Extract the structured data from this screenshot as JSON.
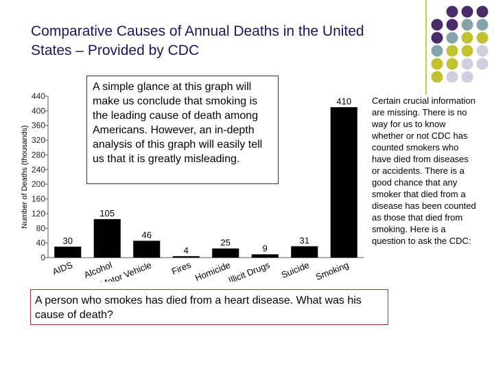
{
  "title": "Comparative Causes of Annual Deaths in the United States – Provided by CDC",
  "note_box": "A simple glance at this graph will make us conclude that smoking is the leading cause of death among Americans. However, an in-depth analysis of this graph will easily tell us that it is greatly misleading.",
  "side_text": "Certain crucial information are missing. There is no way for us to know whether or not CDC has counted smokers who have died from diseases or accidents. There is a good chance that any smoker that died from a disease has been counted as those that died from smoking. Here is a question to ask the CDC:",
  "question": "A person who smokes has died from a heart disease. What was his cause of death?",
  "colors": {
    "title": "#1b1464",
    "bar": "#000000",
    "decor_purple": "#4b2c6b",
    "decor_teal": "#84a5a8",
    "decor_olive": "#c2c12e",
    "decor_lavender": "#cfcfe0",
    "question_border": "#b03030"
  },
  "chart_data": {
    "type": "bar",
    "categories": [
      "AIDS",
      "Alcohol",
      "Motor Vehicle",
      "Fires",
      "Homicide",
      "Illicit Drugs",
      "Suicide",
      "Smoking"
    ],
    "values": [
      30,
      105,
      46,
      4,
      25,
      9,
      31,
      410
    ],
    "value_labels": [
      "30",
      "105",
      "46",
      "4",
      "25",
      "9",
      "31",
      "410"
    ],
    "ylabel": "Number of Deaths (thousands)",
    "ylim": [
      0,
      440
    ],
    "yticks": [
      0,
      40,
      80,
      120,
      160,
      200,
      240,
      280,
      320,
      360,
      400,
      440
    ],
    "grid": false
  }
}
